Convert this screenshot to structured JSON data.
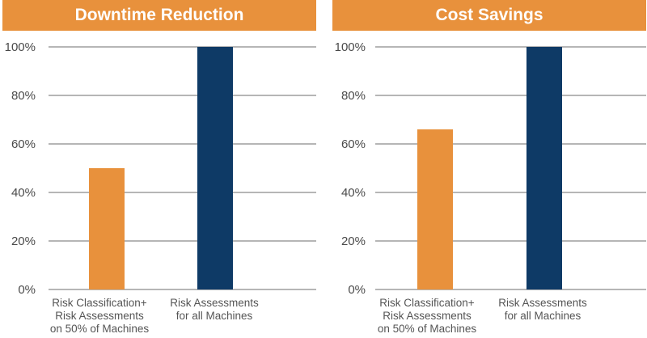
{
  "colors": {
    "banner": "#e8913c",
    "bar_orange": "#e8913c",
    "bar_navy": "#0e3a66",
    "grid": "#8a8a8a",
    "tick_text": "#4a4a4a"
  },
  "chart_data": [
    {
      "type": "bar",
      "title": "Downtime Reduction",
      "categories": [
        "Risk Classification+\nRisk Assessments\non 50% of Machines",
        "Risk Assessments\nfor all Machines"
      ],
      "values": [
        50,
        100
      ],
      "bar_colors": [
        "#e8913c",
        "#0e3a66"
      ],
      "ylim": [
        0,
        100
      ],
      "yticks": [
        0,
        20,
        40,
        60,
        80,
        100
      ],
      "ytick_labels": [
        "0%",
        "20%",
        "40%",
        "60%",
        "80%",
        "100%"
      ],
      "grid": true,
      "xlabel": "",
      "ylabel": ""
    },
    {
      "type": "bar",
      "title": "Cost Savings",
      "categories": [
        "Risk Classification+\nRisk Assessments\non 50% of Machines",
        "Risk Assessments\nfor all Machines"
      ],
      "values": [
        66,
        100
      ],
      "bar_colors": [
        "#e8913c",
        "#0e3a66"
      ],
      "ylim": [
        0,
        100
      ],
      "yticks": [
        0,
        20,
        40,
        60,
        80,
        100
      ],
      "ytick_labels": [
        "0%",
        "20%",
        "40%",
        "60%",
        "80%",
        "100%"
      ],
      "grid": true,
      "xlabel": "",
      "ylabel": ""
    }
  ]
}
